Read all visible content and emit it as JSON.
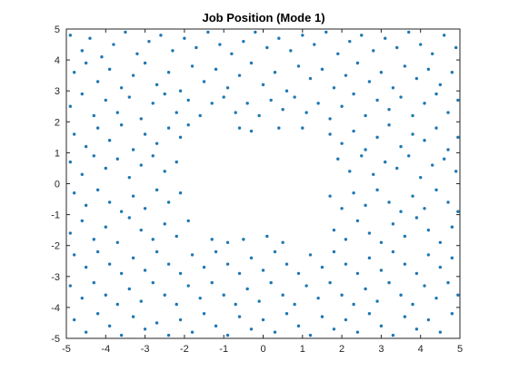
{
  "chart_data": {
    "type": "scatter",
    "title": "Job Position (Mode 1)",
    "xlabel": "",
    "ylabel": "",
    "xlim": [
      -5,
      5
    ],
    "ylim": [
      -5,
      5
    ],
    "xticks": [
      -5,
      -4,
      -3,
      -2,
      -1,
      0,
      1,
      2,
      3,
      4,
      5
    ],
    "yticks": [
      -5,
      -4,
      -3,
      -2,
      -1,
      0,
      1,
      2,
      3,
      4,
      5
    ],
    "grid": false,
    "legend": "none",
    "marker_color": "#1f77b4",
    "series": [
      {
        "points": [
          [
            -4.9,
            4.8
          ],
          [
            -4.6,
            4.3
          ],
          [
            -4.4,
            4.7
          ],
          [
            -4.1,
            4.1
          ],
          [
            -3.8,
            4.5
          ],
          [
            -3.5,
            4.9
          ],
          [
            -3.2,
            4.2
          ],
          [
            -2.9,
            4.6
          ],
          [
            -2.6,
            4.8
          ],
          [
            -2.3,
            4.3
          ],
          [
            -2.0,
            4.7
          ],
          [
            -1.7,
            4.4
          ],
          [
            -1.4,
            4.9
          ],
          [
            -1.1,
            4.5
          ],
          [
            -0.8,
            4.2
          ],
          [
            -0.5,
            4.6
          ],
          [
            -0.2,
            4.9
          ],
          [
            0.1,
            4.4
          ],
          [
            0.4,
            4.7
          ],
          [
            0.7,
            4.3
          ],
          [
            1.0,
            4.8
          ],
          [
            1.3,
            4.5
          ],
          [
            1.6,
            4.9
          ],
          [
            1.9,
            4.2
          ],
          [
            2.2,
            4.6
          ],
          [
            2.5,
            4.8
          ],
          [
            2.8,
            4.3
          ],
          [
            3.1,
            4.7
          ],
          [
            3.4,
            4.4
          ],
          [
            3.7,
            4.9
          ],
          [
            4.0,
            4.5
          ],
          [
            4.3,
            4.2
          ],
          [
            4.6,
            4.8
          ],
          [
            4.9,
            4.4
          ],
          [
            -4.8,
            3.6
          ],
          [
            -4.5,
            3.9
          ],
          [
            -4.2,
            3.3
          ],
          [
            -3.9,
            3.7
          ],
          [
            -3.6,
            3.1
          ],
          [
            -3.3,
            3.5
          ],
          [
            -3.0,
            3.9
          ],
          [
            -2.7,
            3.2
          ],
          [
            -2.4,
            3.6
          ],
          [
            -2.1,
            3.0
          ],
          [
            -1.8,
            3.8
          ],
          [
            -1.5,
            3.3
          ],
          [
            -1.2,
            3.7
          ],
          [
            -0.9,
            3.1
          ],
          [
            -0.6,
            3.5
          ],
          [
            -0.3,
            3.9
          ],
          [
            0.0,
            3.2
          ],
          [
            0.3,
            3.6
          ],
          [
            0.6,
            3.0
          ],
          [
            0.9,
            3.8
          ],
          [
            1.2,
            3.4
          ],
          [
            1.5,
            3.7
          ],
          [
            1.8,
            3.1
          ],
          [
            2.1,
            3.5
          ],
          [
            2.4,
            3.9
          ],
          [
            2.7,
            3.3
          ],
          [
            3.0,
            3.6
          ],
          [
            3.3,
            3.1
          ],
          [
            3.6,
            3.8
          ],
          [
            3.9,
            3.4
          ],
          [
            4.2,
            3.7
          ],
          [
            4.5,
            3.2
          ],
          [
            4.8,
            3.6
          ],
          [
            -4.9,
            2.5
          ],
          [
            -4.6,
            2.9
          ],
          [
            -4.3,
            2.2
          ],
          [
            -4.0,
            2.7
          ],
          [
            -3.7,
            2.3
          ],
          [
            -3.4,
            2.8
          ],
          [
            -3.1,
            2.1
          ],
          [
            -2.8,
            2.6
          ],
          [
            -2.5,
            2.9
          ],
          [
            -2.2,
            2.3
          ],
          [
            -1.9,
            2.7
          ],
          [
            -1.6,
            2.2
          ],
          [
            -1.3,
            2.6
          ],
          [
            -1.0,
            2.8
          ],
          [
            -0.7,
            2.3
          ],
          [
            -0.4,
            2.6
          ],
          [
            -0.1,
            2.2
          ],
          [
            0.2,
            2.7
          ],
          [
            0.5,
            2.4
          ],
          [
            0.8,
            2.8
          ],
          [
            1.1,
            2.3
          ],
          [
            1.4,
            2.6
          ],
          [
            1.7,
            2.1
          ],
          [
            2.0,
            2.5
          ],
          [
            2.3,
            2.9
          ],
          [
            2.6,
            2.2
          ],
          [
            2.9,
            2.7
          ],
          [
            3.2,
            2.4
          ],
          [
            3.5,
            2.8
          ],
          [
            3.8,
            2.2
          ],
          [
            4.1,
            2.6
          ],
          [
            4.4,
            2.9
          ],
          [
            4.7,
            2.3
          ],
          [
            4.95,
            2.7
          ],
          [
            -4.8,
            1.6
          ],
          [
            -4.5,
            1.2
          ],
          [
            -4.2,
            1.8
          ],
          [
            -3.9,
            1.4
          ],
          [
            -3.6,
            1.9
          ],
          [
            -3.3,
            1.1
          ],
          [
            -3.0,
            1.6
          ],
          [
            -2.7,
            1.3
          ],
          [
            -2.4,
            1.8
          ],
          [
            -2.1,
            1.5
          ],
          [
            -1.9,
            1.9
          ],
          [
            -0.6,
            1.8
          ],
          [
            -0.3,
            1.7
          ],
          [
            0.4,
            1.8
          ],
          [
            1.0,
            1.8
          ],
          [
            1.7,
            1.6
          ],
          [
            2.0,
            1.3
          ],
          [
            2.3,
            1.7
          ],
          [
            2.6,
            1.1
          ],
          [
            2.9,
            1.5
          ],
          [
            3.2,
            1.9
          ],
          [
            3.5,
            1.2
          ],
          [
            3.8,
            1.6
          ],
          [
            4.1,
            1.4
          ],
          [
            4.4,
            1.8
          ],
          [
            4.7,
            1.1
          ],
          [
            4.95,
            1.5
          ],
          [
            -4.9,
            0.7
          ],
          [
            -4.6,
            0.3
          ],
          [
            -4.3,
            0.9
          ],
          [
            -4.0,
            0.5
          ],
          [
            -3.7,
            0.8
          ],
          [
            -3.4,
            0.2
          ],
          [
            -3.1,
            0.6
          ],
          [
            -2.8,
            0.9
          ],
          [
            -2.5,
            0.4
          ],
          [
            -2.2,
            0.7
          ],
          [
            1.9,
            0.8
          ],
          [
            2.2,
            0.4
          ],
          [
            2.5,
            0.9
          ],
          [
            2.8,
            0.3
          ],
          [
            3.1,
            0.7
          ],
          [
            3.4,
            0.5
          ],
          [
            3.7,
            0.9
          ],
          [
            4.0,
            0.2
          ],
          [
            4.3,
            0.6
          ],
          [
            4.6,
            0.8
          ],
          [
            4.9,
            0.4
          ],
          [
            -4.8,
            -0.3
          ],
          [
            -4.5,
            -0.7
          ],
          [
            -4.2,
            -0.2
          ],
          [
            -3.9,
            -0.6
          ],
          [
            -3.6,
            -0.9
          ],
          [
            -3.3,
            -0.4
          ],
          [
            -3.0,
            -0.8
          ],
          [
            -2.7,
            -0.2
          ],
          [
            -2.4,
            -0.6
          ],
          [
            -2.1,
            -0.3
          ],
          [
            1.7,
            -0.4
          ],
          [
            2.0,
            -0.8
          ],
          [
            2.3,
            -0.3
          ],
          [
            2.6,
            -0.7
          ],
          [
            2.9,
            -0.2
          ],
          [
            3.2,
            -0.6
          ],
          [
            3.5,
            -0.9
          ],
          [
            3.8,
            -0.4
          ],
          [
            4.1,
            -0.8
          ],
          [
            4.4,
            -0.2
          ],
          [
            4.7,
            -0.6
          ],
          [
            4.95,
            -0.9
          ],
          [
            -4.9,
            -1.6
          ],
          [
            -4.6,
            -1.2
          ],
          [
            -4.3,
            -1.8
          ],
          [
            -4.0,
            -1.4
          ],
          [
            -3.7,
            -1.9
          ],
          [
            -3.4,
            -1.1
          ],
          [
            -3.1,
            -1.5
          ],
          [
            -2.8,
            -1.8
          ],
          [
            -2.5,
            -1.3
          ],
          [
            -2.2,
            -1.7
          ],
          [
            -1.9,
            -1.2
          ],
          [
            -1.3,
            -1.8
          ],
          [
            -0.9,
            -1.9
          ],
          [
            -0.5,
            -1.8
          ],
          [
            0.1,
            -1.7
          ],
          [
            0.5,
            -1.9
          ],
          [
            1.8,
            -1.5
          ],
          [
            2.1,
            -1.8
          ],
          [
            2.4,
            -1.2
          ],
          [
            2.7,
            -1.6
          ],
          [
            3.0,
            -1.9
          ],
          [
            3.3,
            -1.3
          ],
          [
            3.6,
            -1.7
          ],
          [
            3.9,
            -1.1
          ],
          [
            4.2,
            -1.5
          ],
          [
            4.5,
            -1.9
          ],
          [
            4.8,
            -1.4
          ],
          [
            -4.8,
            -2.3
          ],
          [
            -4.5,
            -2.7
          ],
          [
            -4.2,
            -2.2
          ],
          [
            -3.9,
            -2.6
          ],
          [
            -3.6,
            -2.9
          ],
          [
            -3.3,
            -2.4
          ],
          [
            -3.0,
            -2.8
          ],
          [
            -2.7,
            -2.2
          ],
          [
            -2.4,
            -2.6
          ],
          [
            -2.1,
            -2.9
          ],
          [
            -1.8,
            -2.3
          ],
          [
            -1.5,
            -2.7
          ],
          [
            -1.2,
            -2.2
          ],
          [
            -0.9,
            -2.6
          ],
          [
            -0.6,
            -2.9
          ],
          [
            -0.3,
            -2.4
          ],
          [
            0.0,
            -2.8
          ],
          [
            0.3,
            -2.2
          ],
          [
            0.6,
            -2.6
          ],
          [
            0.9,
            -2.9
          ],
          [
            1.2,
            -2.3
          ],
          [
            1.5,
            -2.7
          ],
          [
            1.8,
            -2.2
          ],
          [
            2.1,
            -2.6
          ],
          [
            2.4,
            -2.9
          ],
          [
            2.7,
            -2.4
          ],
          [
            3.0,
            -2.8
          ],
          [
            3.3,
            -2.2
          ],
          [
            3.6,
            -2.6
          ],
          [
            3.9,
            -2.9
          ],
          [
            4.2,
            -2.3
          ],
          [
            4.5,
            -2.7
          ],
          [
            4.8,
            -2.4
          ],
          [
            -4.9,
            -3.3
          ],
          [
            -4.6,
            -3.7
          ],
          [
            -4.3,
            -3.2
          ],
          [
            -4.0,
            -3.6
          ],
          [
            -3.7,
            -3.9
          ],
          [
            -3.4,
            -3.4
          ],
          [
            -3.1,
            -3.8
          ],
          [
            -2.8,
            -3.2
          ],
          [
            -2.5,
            -3.6
          ],
          [
            -2.2,
            -3.9
          ],
          [
            -1.9,
            -3.3
          ],
          [
            -1.6,
            -3.7
          ],
          [
            -1.3,
            -3.2
          ],
          [
            -1.0,
            -3.6
          ],
          [
            -0.7,
            -3.9
          ],
          [
            -0.4,
            -3.4
          ],
          [
            -0.1,
            -3.8
          ],
          [
            0.2,
            -3.2
          ],
          [
            0.5,
            -3.6
          ],
          [
            0.8,
            -3.9
          ],
          [
            1.1,
            -3.3
          ],
          [
            1.4,
            -3.7
          ],
          [
            1.7,
            -3.2
          ],
          [
            2.0,
            -3.6
          ],
          [
            2.3,
            -3.9
          ],
          [
            2.6,
            -3.4
          ],
          [
            2.9,
            -3.8
          ],
          [
            3.2,
            -3.2
          ],
          [
            3.5,
            -3.6
          ],
          [
            3.8,
            -3.9
          ],
          [
            4.1,
            -3.3
          ],
          [
            4.4,
            -3.7
          ],
          [
            4.7,
            -3.2
          ],
          [
            4.95,
            -3.6
          ],
          [
            -4.8,
            -4.4
          ],
          [
            -4.5,
            -4.8
          ],
          [
            -4.2,
            -4.2
          ],
          [
            -3.9,
            -4.6
          ],
          [
            -3.6,
            -4.9
          ],
          [
            -3.3,
            -4.3
          ],
          [
            -3.0,
            -4.7
          ],
          [
            -2.7,
            -4.5
          ],
          [
            -2.4,
            -4.9
          ],
          [
            -2.1,
            -4.4
          ],
          [
            -1.8,
            -4.8
          ],
          [
            -1.5,
            -4.2
          ],
          [
            -1.2,
            -4.6
          ],
          [
            -0.9,
            -4.9
          ],
          [
            -0.6,
            -4.3
          ],
          [
            -0.3,
            -4.7
          ],
          [
            0.0,
            -4.4
          ],
          [
            0.3,
            -4.8
          ],
          [
            0.6,
            -4.2
          ],
          [
            0.9,
            -4.6
          ],
          [
            1.2,
            -4.9
          ],
          [
            1.5,
            -4.3
          ],
          [
            1.8,
            -4.7
          ],
          [
            2.1,
            -4.4
          ],
          [
            2.4,
            -4.8
          ],
          [
            2.7,
            -4.2
          ],
          [
            3.0,
            -4.6
          ],
          [
            3.3,
            -4.9
          ],
          [
            3.6,
            -4.3
          ],
          [
            3.9,
            -4.7
          ],
          [
            4.2,
            -4.4
          ],
          [
            4.5,
            -4.8
          ],
          [
            4.8,
            -4.2
          ]
        ]
      }
    ]
  }
}
